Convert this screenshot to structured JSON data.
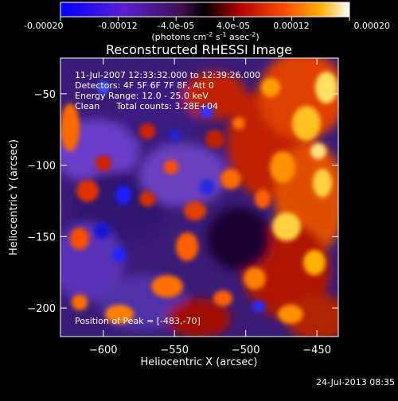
{
  "colorbar": {
    "ticks": [
      "-0.00020",
      "-0.00012",
      "-4.0e-05",
      "4.0e-05",
      "0.00012",
      "0.00020"
    ],
    "units_main": "(photons cm",
    "units_exp1": "-2",
    "units_mid": " s",
    "units_exp2": "-1",
    "units_end": " asec",
    "units_exp3": "-2",
    "units_close": ")",
    "vmin": -0.0002,
    "vmax": 0.0002
  },
  "chart_data": {
    "type": "heatmap",
    "title": "Reconstructed RHESSI Image",
    "xlabel": "Heliocentric X (arcsec)",
    "ylabel": "Heliocentric Y (arcsec)",
    "xlim": [
      -630,
      -435
    ],
    "ylim": [
      -220,
      -25
    ],
    "xticks": [
      -600,
      -550,
      -500,
      -450
    ],
    "yticks": [
      -200,
      -150,
      -100,
      -50
    ],
    "xtick_labels": [
      "−600",
      "−550",
      "−500",
      "−450"
    ],
    "ytick_labels": [
      "−200",
      "−150",
      "−100",
      "−50"
    ],
    "annotations": [
      "11-Jul-2007 12:33:32.000 to 12:39:26.000",
      "Detectors: 4F 5F 6F 7F 8F, Att 0",
      "Energy Range: 12.0 - 25.0 keV",
      "Clean      Total counts: 3.28E+04"
    ],
    "peak_label": "Position of Peak = [-483,-70]",
    "peak": [
      -483,
      -70
    ],
    "colormap": [
      "#0a0aff",
      "#3a1a90",
      "#6a40c0",
      "#1a0000",
      "#a00000",
      "#ff3000",
      "#ff9000",
      "#ffe060",
      "#ffffff"
    ]
  },
  "footer": {
    "timestamp": "24-Jul-2013 08:35"
  }
}
